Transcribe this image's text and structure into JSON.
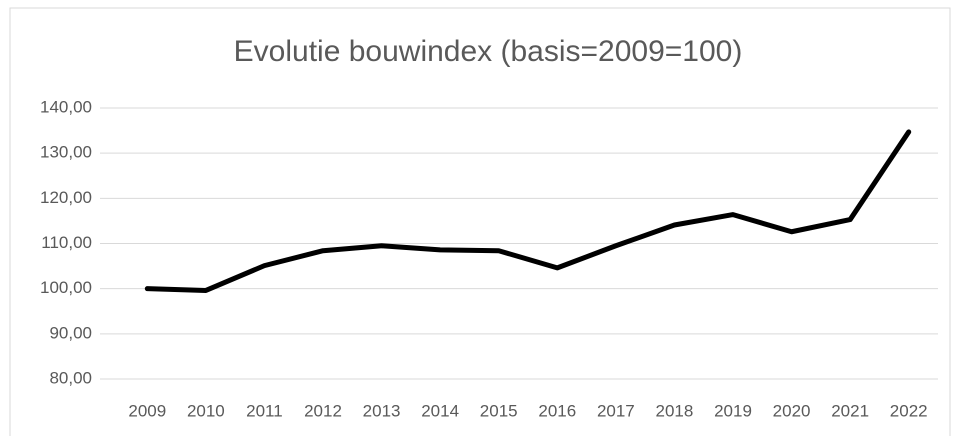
{
  "chart_data": {
    "type": "line",
    "title": "Evolutie bouwindex (basis=2009=100)",
    "categories": [
      "2009",
      "2010",
      "2011",
      "2012",
      "2013",
      "2014",
      "2015",
      "2016",
      "2017",
      "2018",
      "2019",
      "2020",
      "2021",
      "2022"
    ],
    "series": [
      {
        "color": "#000000",
        "values": [
          100.0,
          99.6,
          105.1,
          108.4,
          109.5,
          108.6,
          108.4,
          104.6,
          109.5,
          114.1,
          116.4,
          112.6,
          115.3,
          134.7
        ]
      }
    ],
    "ylim": [
      80,
      140
    ],
    "yticks": [
      {
        "value": 80,
        "label": "80,00"
      },
      {
        "value": 90,
        "label": "90,00"
      },
      {
        "value": 100,
        "label": "100,00"
      },
      {
        "value": 110,
        "label": "110,00"
      },
      {
        "value": 120,
        "label": "120,00"
      },
      {
        "value": 130,
        "label": "130,00"
      },
      {
        "value": 140,
        "label": "140,00"
      }
    ],
    "grid": true
  }
}
